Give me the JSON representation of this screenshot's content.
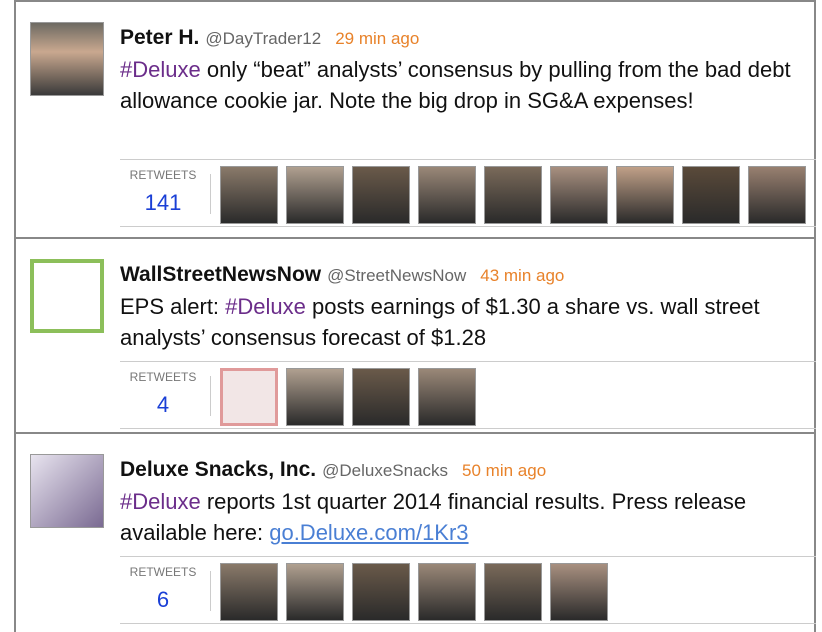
{
  "tweets": [
    {
      "name": "Peter H.",
      "handle": "@DayTrader12",
      "time": "29 min ago",
      "text": [
        {
          "style": "hashtag",
          "text": "#Deluxe"
        },
        {
          "style": "plain",
          "text": " only “beat” analysts’ consensus by pulling from the bad debt allowance cookie jar. Note the big drop in SG&A expenses!"
        }
      ],
      "retweets_label": "RETWEETS",
      "retweets": 141
    },
    {
      "name": "WallStreetNewsNow",
      "handle": "@StreetNewsNow",
      "time": "43 min ago",
      "text": [
        {
          "style": "plain",
          "text": "EPS alert: "
        },
        {
          "style": "hashtag",
          "text": "#Deluxe"
        },
        {
          "style": "plain",
          "text": " posts earnings of $1.30 a share vs. wall street analysts’ consensus forecast of $1.28"
        }
      ],
      "retweets_label": "RETWEETS",
      "retweets": 4
    },
    {
      "name": "Deluxe Snacks, Inc.",
      "handle": "@DeluxeSnacks",
      "time": "50 min ago",
      "text": [
        {
          "style": "hashtag",
          "text": "#Deluxe"
        },
        {
          "style": "plain",
          "text": " reports 1st quarter 2014 financial results. Press release available here: "
        },
        {
          "style": "link",
          "text": "go.Deluxe.com/1Kr3"
        }
      ],
      "retweets_label": "RETWEETS",
      "retweets": 6
    }
  ]
}
